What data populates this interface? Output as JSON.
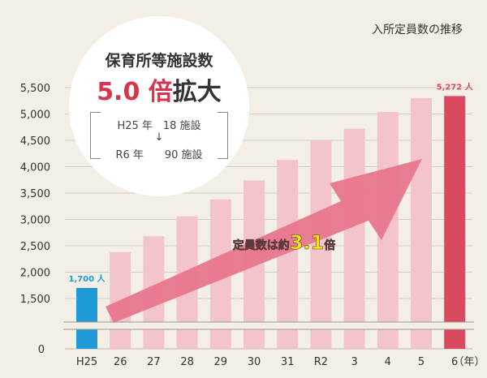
{
  "title": "入所定員数の推移",
  "callout": {
    "title": "保育所等施設数",
    "big_number": "5.0",
    "big_unit": "倍",
    "big_word": "拡大",
    "row1": "H25 年　18 施設",
    "arrow": "↓",
    "row2": "R6 年　　90 施設"
  },
  "arrow_label": {
    "prefix": "定員数は約",
    "number": "3.1",
    "suffix": "倍"
  },
  "colors": {
    "background": "#f3efe6",
    "first_bar": "#1e9ad6",
    "middle_bar": "#f4c4cc",
    "last_bar": "#d94a5f",
    "arrow": "#e7738a",
    "label_yellow": "#f2e21a"
  },
  "chart_data": {
    "type": "bar",
    "title": "入所定員数の推移",
    "xlabel": "（年）",
    "ylabel": "",
    "categories": [
      "H25",
      "26",
      "27",
      "28",
      "29",
      "30",
      "31",
      "R2",
      "3",
      "4",
      "5",
      "6"
    ],
    "values": [
      1700,
      2380,
      2680,
      3060,
      3380,
      3740,
      4130,
      4500,
      4720,
      5040,
      5300,
      5272
    ],
    "ytick_labels": [
      "0",
      "1,500",
      "2,000",
      "2,500",
      "3,000",
      "3,500",
      "4,000",
      "4,500",
      "5,000",
      "5,500"
    ],
    "ylim": [
      0,
      5500
    ],
    "axis_break": "between 0 and 1,500",
    "grid": true,
    "data_labels": [
      {
        "category": "H25",
        "text": "1,700 人"
      },
      {
        "category": "6",
        "text": "5,272 人"
      }
    ]
  }
}
